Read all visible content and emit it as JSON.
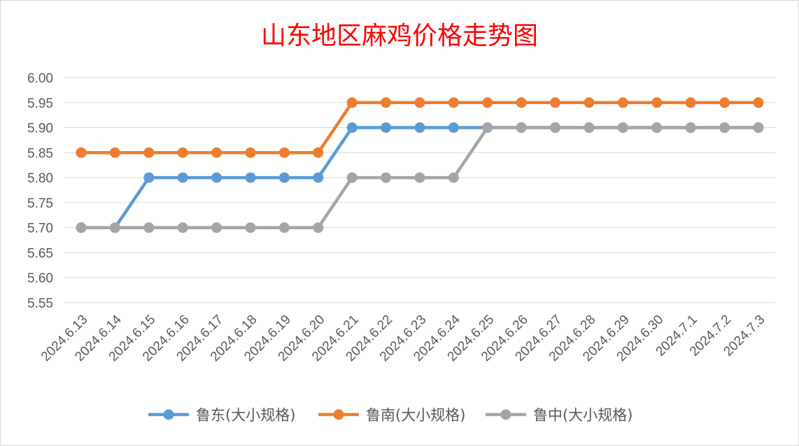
{
  "chart_data": {
    "type": "line",
    "title": "山东地区麻鸡价格走势图",
    "xlabel": "",
    "ylabel": "",
    "ylim": [
      5.55,
      6.0
    ],
    "yticks": [
      "6.00",
      "5.95",
      "5.90",
      "5.85",
      "5.80",
      "5.75",
      "5.70",
      "5.65",
      "5.60",
      "5.55"
    ],
    "grid": "horizontal",
    "legend_position": "bottom",
    "categories": [
      "2024.6.13",
      "2024.6.14",
      "2024.6.15",
      "2024.6.16",
      "2024.6.17",
      "2024.6.18",
      "2024.6.19",
      "2024.6.20",
      "2024.6.21",
      "2024.6.22",
      "2024.6.23",
      "2024.6.24",
      "2024.6.25",
      "2024.6.26",
      "2024.6.27",
      "2024.6.28",
      "2024.6.29",
      "2024.6.30",
      "2024.7.1",
      "2024.7.2",
      "2024.7.3"
    ],
    "series": [
      {
        "name": "鲁东(大小规格)",
        "color": "#5b9bd5",
        "values": [
          5.7,
          5.7,
          5.8,
          5.8,
          5.8,
          5.8,
          5.8,
          5.8,
          5.9,
          5.9,
          5.9,
          5.9,
          5.9,
          5.9,
          5.9,
          5.9,
          5.9,
          5.9,
          5.9,
          5.9,
          5.9
        ]
      },
      {
        "name": "鲁南(大小规格)",
        "color": "#ed7d31",
        "values": [
          5.85,
          5.85,
          5.85,
          5.85,
          5.85,
          5.85,
          5.85,
          5.85,
          5.95,
          5.95,
          5.95,
          5.95,
          5.95,
          5.95,
          5.95,
          5.95,
          5.95,
          5.95,
          5.95,
          5.95,
          5.95
        ]
      },
      {
        "name": "鲁中(大小规格)",
        "color": "#a5a5a5",
        "values": [
          5.7,
          5.7,
          5.7,
          5.7,
          5.7,
          5.7,
          5.7,
          5.7,
          5.8,
          5.8,
          5.8,
          5.8,
          5.9,
          5.9,
          5.9,
          5.9,
          5.9,
          5.9,
          5.9,
          5.9,
          5.9
        ]
      }
    ]
  }
}
